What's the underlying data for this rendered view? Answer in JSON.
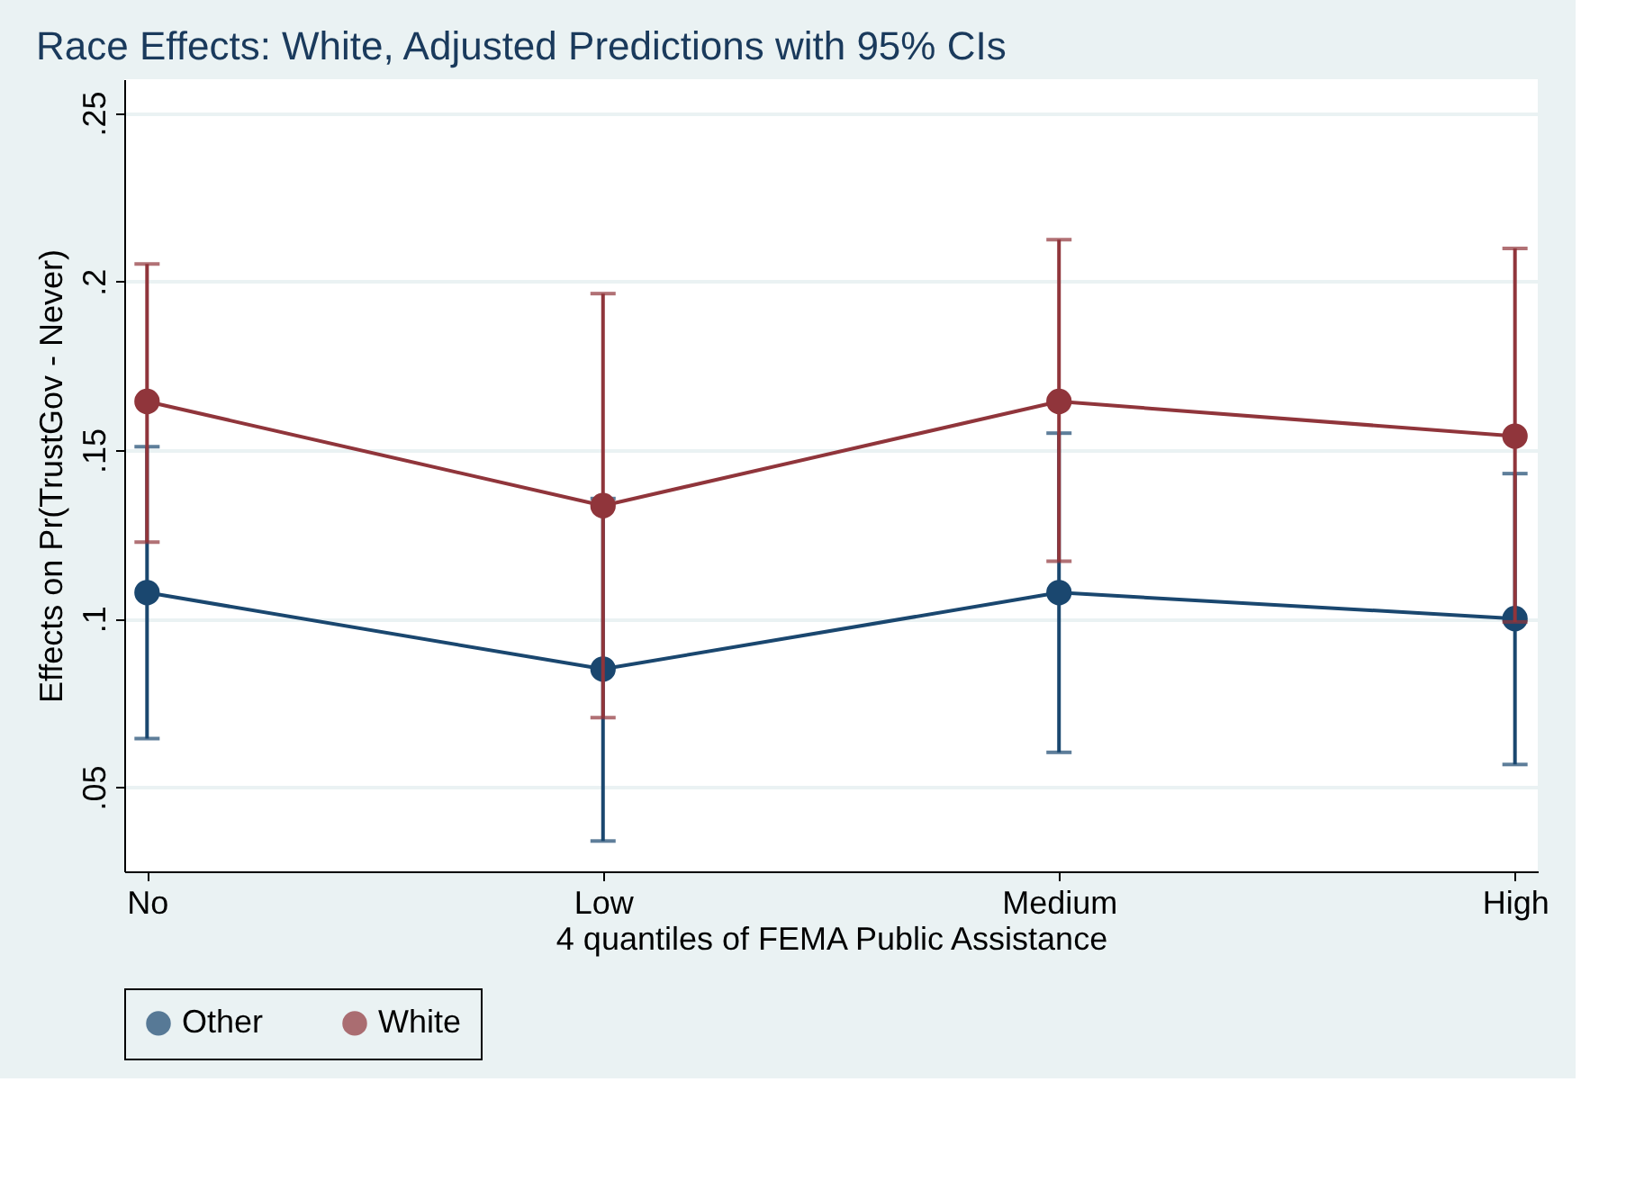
{
  "chart_data": {
    "type": "line",
    "title": "Race Effects: White, Adjusted Predictions with 95% CIs",
    "xlabel": "4 quantiles of FEMA Public Assistance",
    "ylabel": "Effects on Pr(TrustGov - Never)",
    "categories": [
      "No",
      "Low",
      "Medium",
      "High"
    ],
    "series": [
      {
        "name": "Other",
        "color": "#1a476f",
        "values": [
          0.1077,
          0.085,
          0.1077,
          0.1
        ],
        "errors": [
          [
            0.0644,
            0.151
          ],
          [
            0.034,
            0.1356
          ],
          [
            0.0603,
            0.155
          ],
          [
            0.0567,
            0.143
          ]
        ]
      },
      {
        "name": "White",
        "color": "#90353b",
        "values": [
          0.1644,
          0.1335,
          0.1644,
          0.1541
        ],
        "errors": [
          [
            0.1227,
            0.2052
          ],
          [
            0.0706,
            0.1964
          ],
          [
            0.117,
            0.2124
          ],
          [
            0.099,
            0.2098
          ]
        ]
      }
    ],
    "ylim": [
      0.025,
      0.26
    ],
    "yticks": [
      {
        "value": 0.05,
        "label": ".05"
      },
      {
        "value": 0.1,
        "label": ".1"
      },
      {
        "value": 0.15,
        "label": ".15"
      },
      {
        "value": 0.2,
        "label": ".2"
      },
      {
        "value": 0.25,
        "label": ".25"
      }
    ],
    "grid": "y",
    "legend": "bottom",
    "marker": "circle"
  }
}
